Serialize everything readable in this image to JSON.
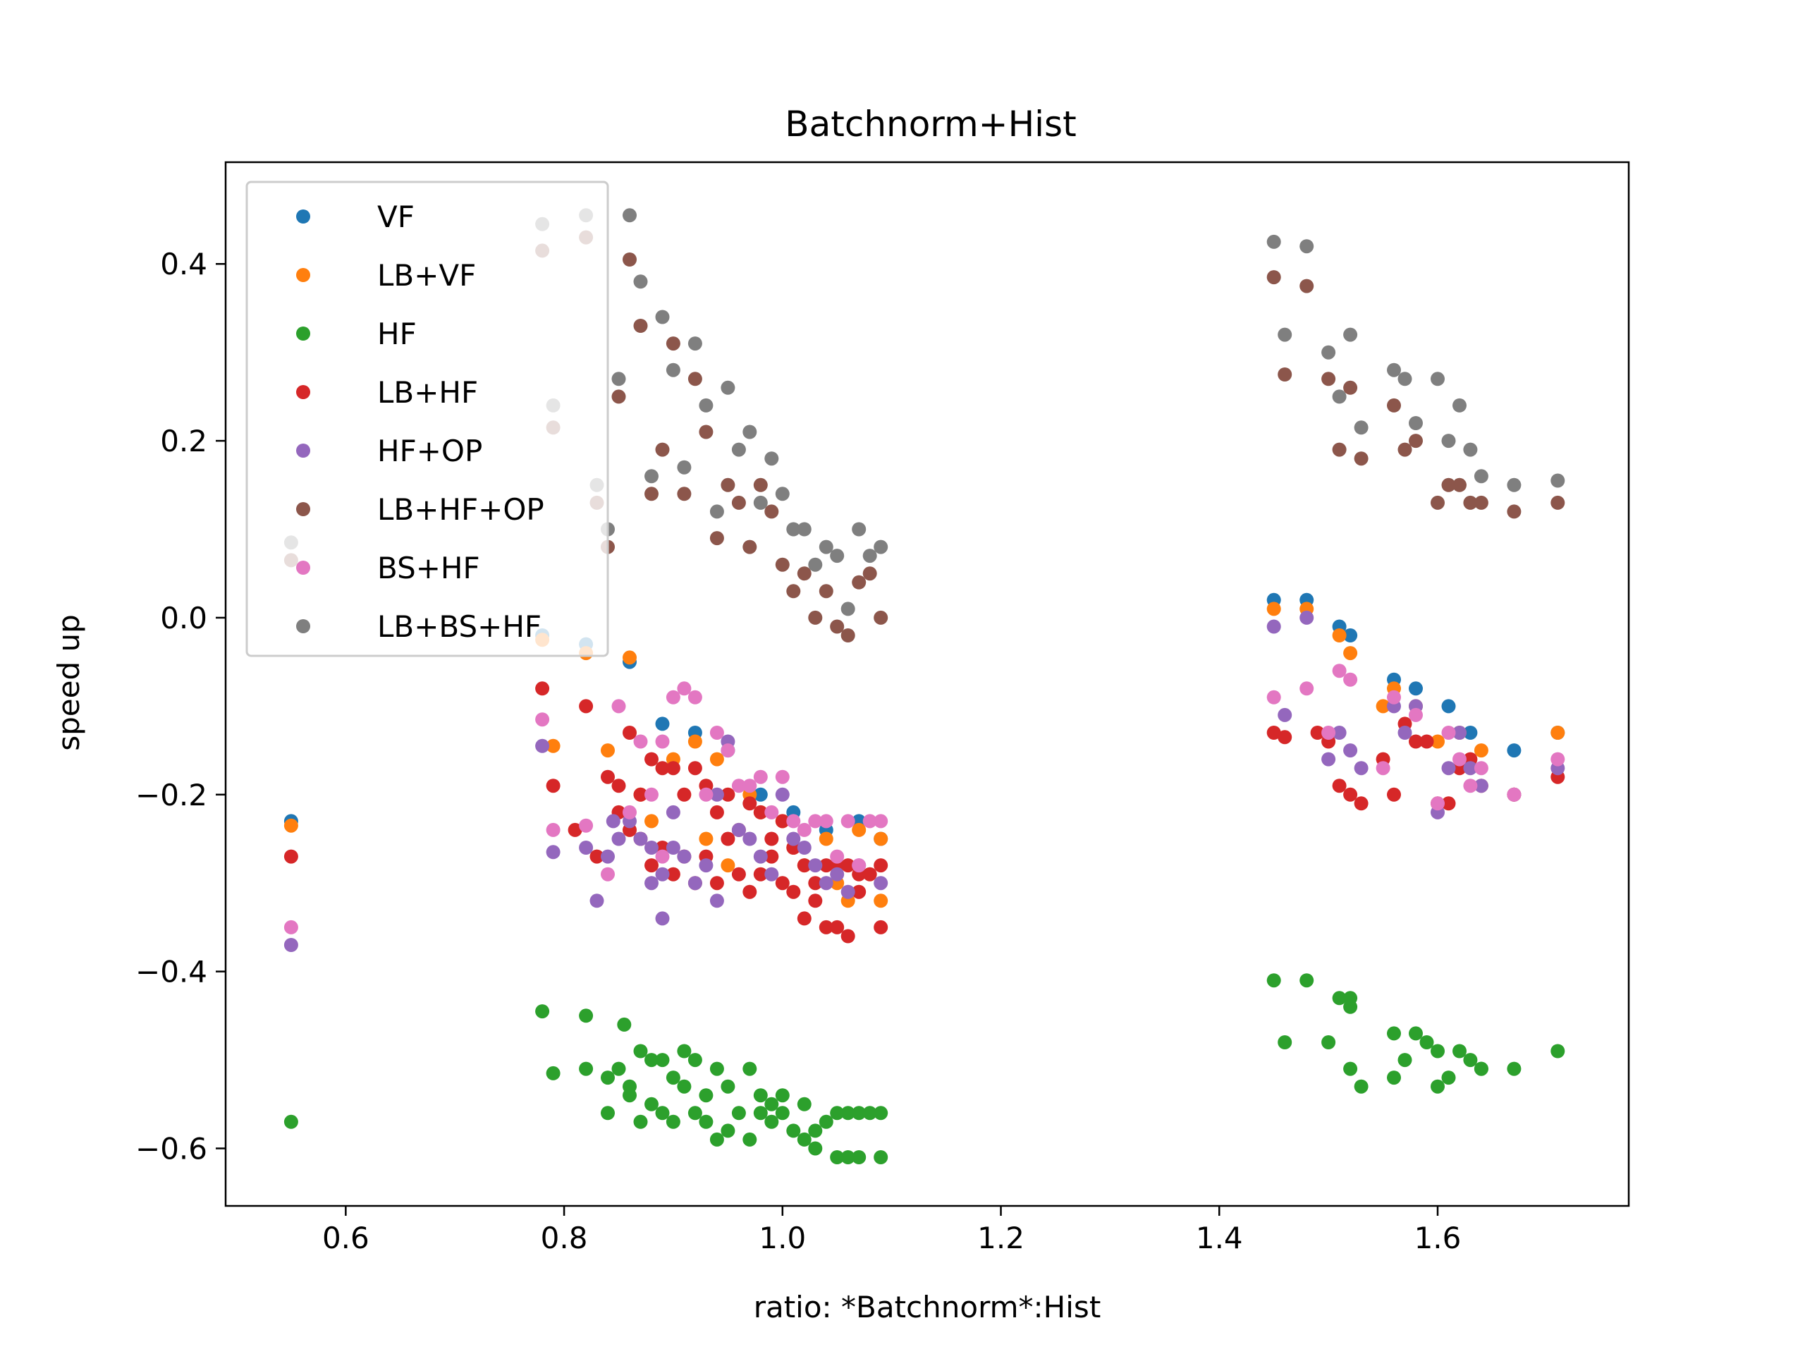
{
  "chart_data": {
    "type": "scatter",
    "title": "Batchnorm+Hist",
    "xlabel": "ratio: *Batchnorm*:Hist",
    "ylabel": "speed up",
    "xlim": [
      0.49,
      1.775
    ],
    "ylim": [
      -0.665,
      0.515
    ],
    "xticks": [
      0.6,
      0.8,
      1.0,
      1.2,
      1.4,
      1.6
    ],
    "xtick_labels": [
      "0.6",
      "0.8",
      "1.0",
      "1.2",
      "1.4",
      "1.6"
    ],
    "yticks": [
      -0.6,
      -0.4,
      -0.2,
      0.0,
      0.2,
      0.4
    ],
    "ytick_labels": [
      "−0.6",
      "−0.4",
      "−0.2",
      "0.0",
      "0.2",
      "0.4"
    ],
    "grid": false,
    "legend_position": "top-left",
    "series": [
      {
        "name": "VF",
        "color": "#1f77b4",
        "x": [
          0.55,
          0.78,
          0.82,
          0.86,
          0.89,
          0.92,
          0.95,
          0.98,
          1.01,
          1.04,
          1.07,
          1.09,
          1.45,
          1.48,
          1.51,
          1.52,
          1.56,
          1.58,
          1.61,
          1.63,
          1.67,
          1.71
        ],
        "y": [
          -0.23,
          -0.02,
          -0.03,
          -0.05,
          -0.12,
          -0.13,
          -0.15,
          -0.2,
          -0.22,
          -0.24,
          -0.23,
          -0.25,
          0.02,
          0.02,
          -0.01,
          -0.02,
          -0.07,
          -0.08,
          -0.1,
          -0.13,
          -0.15,
          -0.13
        ]
      },
      {
        "name": "LB+VF",
        "color": "#ff7f0e",
        "x": [
          0.55,
          0.78,
          0.79,
          0.82,
          0.84,
          0.86,
          0.87,
          0.88,
          0.9,
          0.92,
          0.93,
          0.94,
          0.95,
          0.97,
          0.98,
          1.0,
          1.01,
          1.02,
          1.04,
          1.05,
          1.06,
          1.07,
          1.09,
          1.09,
          1.45,
          1.48,
          1.51,
          1.52,
          1.55,
          1.56,
          1.58,
          1.6,
          1.62,
          1.64,
          1.67,
          1.71
        ],
        "y": [
          -0.235,
          -0.025,
          -0.145,
          -0.04,
          -0.15,
          -0.045,
          -0.2,
          -0.23,
          -0.16,
          -0.14,
          -0.25,
          -0.16,
          -0.28,
          -0.2,
          -0.22,
          -0.23,
          -0.26,
          -0.28,
          -0.25,
          -0.3,
          -0.32,
          -0.24,
          -0.32,
          -0.25,
          0.01,
          0.01,
          -0.02,
          -0.04,
          -0.1,
          -0.08,
          -0.1,
          -0.14,
          -0.13,
          -0.15,
          -0.2,
          -0.13
        ]
      },
      {
        "name": "HF",
        "color": "#2ca02c",
        "x": [
          0.55,
          0.78,
          0.79,
          0.82,
          0.82,
          0.84,
          0.84,
          0.85,
          0.855,
          0.86,
          0.86,
          0.87,
          0.87,
          0.88,
          0.88,
          0.89,
          0.89,
          0.9,
          0.9,
          0.91,
          0.91,
          0.92,
          0.92,
          0.93,
          0.93,
          0.94,
          0.94,
          0.95,
          0.95,
          0.96,
          0.97,
          0.97,
          0.98,
          0.98,
          0.99,
          0.99,
          1.0,
          1.0,
          1.01,
          1.02,
          1.02,
          1.03,
          1.03,
          1.04,
          1.05,
          1.05,
          1.06,
          1.06,
          1.07,
          1.07,
          1.08,
          1.09,
          1.09,
          1.45,
          1.46,
          1.48,
          1.5,
          1.51,
          1.52,
          1.52,
          1.52,
          1.53,
          1.56,
          1.56,
          1.57,
          1.58,
          1.59,
          1.6,
          1.6,
          1.61,
          1.62,
          1.63,
          1.64,
          1.64,
          1.67,
          1.71
        ],
        "y": [
          -0.57,
          -0.445,
          -0.515,
          -0.45,
          -0.51,
          -0.52,
          -0.56,
          -0.51,
          -0.46,
          -0.53,
          -0.54,
          -0.49,
          -0.57,
          -0.5,
          -0.55,
          -0.5,
          -0.56,
          -0.52,
          -0.57,
          -0.49,
          -0.53,
          -0.5,
          -0.56,
          -0.54,
          -0.57,
          -0.51,
          -0.59,
          -0.53,
          -0.58,
          -0.56,
          -0.51,
          -0.59,
          -0.54,
          -0.56,
          -0.57,
          -0.55,
          -0.54,
          -0.56,
          -0.58,
          -0.55,
          -0.59,
          -0.58,
          -0.6,
          -0.57,
          -0.56,
          -0.61,
          -0.56,
          -0.61,
          -0.56,
          -0.61,
          -0.56,
          -0.56,
          -0.61,
          -0.41,
          -0.48,
          -0.41,
          -0.48,
          -0.43,
          -0.44,
          -0.51,
          -0.43,
          -0.53,
          -0.47,
          -0.52,
          -0.5,
          -0.47,
          -0.48,
          -0.49,
          -0.53,
          -0.52,
          -0.49,
          -0.5,
          -0.51,
          -0.51,
          -0.51,
          -0.49
        ]
      },
      {
        "name": "LB+HF",
        "color": "#d62728",
        "x": [
          0.55,
          0.78,
          0.79,
          0.81,
          0.82,
          0.83,
          0.84,
          0.85,
          0.85,
          0.86,
          0.86,
          0.87,
          0.87,
          0.88,
          0.88,
          0.89,
          0.89,
          0.9,
          0.9,
          0.91,
          0.91,
          0.92,
          0.92,
          0.93,
          0.93,
          0.94,
          0.94,
          0.95,
          0.95,
          0.96,
          0.96,
          0.97,
          0.97,
          0.98,
          0.98,
          0.99,
          0.99,
          1.0,
          1.0,
          1.01,
          1.01,
          1.02,
          1.02,
          1.03,
          1.03,
          1.04,
          1.04,
          1.05,
          1.05,
          1.06,
          1.06,
          1.07,
          1.07,
          1.08,
          1.09,
          1.09,
          1.45,
          1.46,
          1.49,
          1.5,
          1.51,
          1.52,
          1.53,
          1.55,
          1.56,
          1.57,
          1.58,
          1.59,
          1.6,
          1.61,
          1.62,
          1.63,
          1.64,
          1.67,
          1.71
        ],
        "y": [
          -0.27,
          -0.08,
          -0.19,
          -0.24,
          -0.1,
          -0.27,
          -0.18,
          -0.19,
          -0.22,
          -0.24,
          -0.13,
          -0.2,
          -0.25,
          -0.16,
          -0.28,
          -0.17,
          -0.26,
          -0.17,
          -0.29,
          -0.2,
          -0.27,
          -0.17,
          -0.3,
          -0.19,
          -0.27,
          -0.22,
          -0.3,
          -0.2,
          -0.25,
          -0.24,
          -0.29,
          -0.21,
          -0.31,
          -0.22,
          -0.29,
          -0.25,
          -0.27,
          -0.23,
          -0.3,
          -0.26,
          -0.31,
          -0.28,
          -0.34,
          -0.3,
          -0.32,
          -0.28,
          -0.35,
          -0.28,
          -0.35,
          -0.28,
          -0.36,
          -0.29,
          -0.31,
          -0.29,
          -0.35,
          -0.28,
          -0.13,
          -0.135,
          -0.13,
          -0.14,
          -0.19,
          -0.2,
          -0.21,
          -0.16,
          -0.2,
          -0.12,
          -0.14,
          -0.14,
          -0.21,
          -0.21,
          -0.17,
          -0.16,
          -0.19,
          -0.2,
          -0.18
        ]
      },
      {
        "name": "HF+OP",
        "color": "#9467bd",
        "x": [
          0.55,
          0.78,
          0.79,
          0.82,
          0.83,
          0.84,
          0.845,
          0.85,
          0.86,
          0.87,
          0.88,
          0.88,
          0.89,
          0.89,
          0.9,
          0.9,
          0.91,
          0.92,
          0.93,
          0.94,
          0.94,
          0.95,
          0.96,
          0.97,
          0.98,
          0.99,
          1.0,
          1.01,
          1.02,
          1.03,
          1.04,
          1.05,
          1.06,
          1.07,
          1.09,
          1.45,
          1.46,
          1.48,
          1.5,
          1.51,
          1.52,
          1.53,
          1.56,
          1.57,
          1.58,
          1.6,
          1.61,
          1.62,
          1.63,
          1.64,
          1.67,
          1.71
        ],
        "y": [
          -0.37,
          -0.145,
          -0.265,
          -0.26,
          -0.32,
          -0.27,
          -0.23,
          -0.25,
          -0.23,
          -0.25,
          -0.26,
          -0.3,
          -0.29,
          -0.34,
          -0.22,
          -0.26,
          -0.27,
          -0.3,
          -0.28,
          -0.2,
          -0.32,
          -0.14,
          -0.24,
          -0.25,
          -0.27,
          -0.29,
          -0.2,
          -0.25,
          -0.26,
          -0.28,
          -0.3,
          -0.29,
          -0.31,
          -0.28,
          -0.3,
          -0.01,
          -0.11,
          0.0,
          -0.16,
          -0.13,
          -0.15,
          -0.17,
          -0.1,
          -0.13,
          -0.1,
          -0.22,
          -0.17,
          -0.13,
          -0.17,
          -0.19,
          -0.2,
          -0.17
        ]
      },
      {
        "name": "LB+HF+OP",
        "color": "#8c564b",
        "x": [
          0.55,
          0.78,
          0.79,
          0.82,
          0.83,
          0.84,
          0.85,
          0.86,
          0.87,
          0.88,
          0.89,
          0.9,
          0.91,
          0.92,
          0.93,
          0.94,
          0.95,
          0.96,
          0.97,
          0.98,
          0.99,
          1.0,
          1.01,
          1.02,
          1.03,
          1.04,
          1.05,
          1.06,
          1.07,
          1.08,
          1.09,
          1.45,
          1.46,
          1.48,
          1.5,
          1.51,
          1.52,
          1.53,
          1.56,
          1.57,
          1.58,
          1.6,
          1.61,
          1.62,
          1.63,
          1.64,
          1.67,
          1.71
        ],
        "y": [
          0.065,
          0.415,
          0.215,
          0.43,
          0.13,
          0.08,
          0.25,
          0.405,
          0.33,
          0.14,
          0.19,
          0.31,
          0.14,
          0.27,
          0.21,
          0.09,
          0.15,
          0.13,
          0.08,
          0.15,
          0.12,
          0.06,
          0.03,
          0.05,
          0.0,
          0.03,
          -0.01,
          -0.02,
          0.04,
          0.05,
          0.0,
          0.385,
          0.275,
          0.375,
          0.27,
          0.19,
          0.26,
          0.18,
          0.24,
          0.19,
          0.2,
          0.13,
          0.15,
          0.15,
          0.13,
          0.13,
          0.12,
          0.13
        ]
      },
      {
        "name": "BS+HF",
        "color": "#e377c2",
        "x": [
          0.55,
          0.78,
          0.79,
          0.82,
          0.84,
          0.85,
          0.86,
          0.87,
          0.88,
          0.89,
          0.89,
          0.9,
          0.91,
          0.92,
          0.93,
          0.94,
          0.95,
          0.96,
          0.97,
          0.98,
          0.99,
          1.0,
          1.01,
          1.02,
          1.03,
          1.04,
          1.05,
          1.06,
          1.07,
          1.08,
          1.09,
          1.45,
          1.48,
          1.5,
          1.51,
          1.52,
          1.55,
          1.56,
          1.58,
          1.6,
          1.61,
          1.62,
          1.63,
          1.64,
          1.67,
          1.71
        ],
        "y": [
          -0.35,
          -0.115,
          -0.24,
          -0.235,
          -0.29,
          -0.1,
          -0.22,
          -0.14,
          -0.2,
          -0.27,
          -0.14,
          -0.09,
          -0.08,
          -0.09,
          -0.2,
          -0.13,
          -0.15,
          -0.19,
          -0.19,
          -0.18,
          -0.22,
          -0.18,
          -0.23,
          -0.24,
          -0.23,
          -0.23,
          -0.27,
          -0.23,
          -0.28,
          -0.23,
          -0.23,
          -0.09,
          -0.08,
          -0.13,
          -0.06,
          -0.07,
          -0.17,
          -0.09,
          -0.11,
          -0.21,
          -0.13,
          -0.16,
          -0.19,
          -0.17,
          -0.2,
          -0.16
        ]
      },
      {
        "name": "LB+BS+HF",
        "color": "#7f7f7f",
        "x": [
          0.55,
          0.78,
          0.79,
          0.82,
          0.83,
          0.84,
          0.85,
          0.86,
          0.87,
          0.88,
          0.89,
          0.9,
          0.91,
          0.92,
          0.93,
          0.94,
          0.95,
          0.96,
          0.97,
          0.98,
          0.99,
          1.0,
          1.01,
          1.02,
          1.03,
          1.04,
          1.05,
          1.06,
          1.07,
          1.08,
          1.09,
          1.45,
          1.46,
          1.48,
          1.5,
          1.51,
          1.52,
          1.53,
          1.56,
          1.57,
          1.58,
          1.6,
          1.61,
          1.62,
          1.63,
          1.64,
          1.67,
          1.71
        ],
        "y": [
          0.085,
          0.445,
          0.24,
          0.455,
          0.15,
          0.1,
          0.27,
          0.455,
          0.38,
          0.16,
          0.34,
          0.28,
          0.17,
          0.31,
          0.24,
          0.12,
          0.26,
          0.19,
          0.21,
          0.13,
          0.18,
          0.14,
          0.1,
          0.1,
          0.06,
          0.08,
          0.07,
          0.01,
          0.1,
          0.07,
          0.08,
          0.425,
          0.32,
          0.42,
          0.3,
          0.25,
          0.32,
          0.215,
          0.28,
          0.27,
          0.22,
          0.27,
          0.2,
          0.24,
          0.19,
          0.16,
          0.15,
          0.155
        ]
      }
    ]
  }
}
